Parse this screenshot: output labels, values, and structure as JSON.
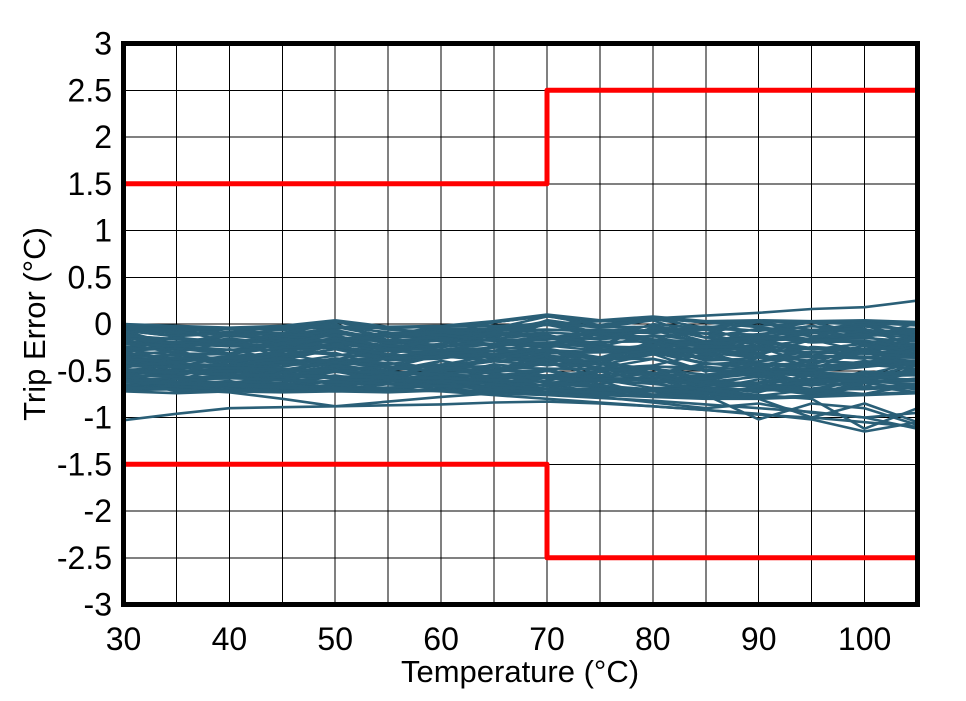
{
  "figure": {
    "colors": {
      "trace": "#2A5F77",
      "limit": "#FF0000",
      "grid": "#000000",
      "axis": "#000000",
      "background": "#FFFFFF"
    }
  },
  "chart_data": {
    "type": "line",
    "title": "",
    "xlabel": "Temperature (°C)",
    "ylabel": "Trip Error (°C)",
    "xlim": [
      30,
      105
    ],
    "ylim": [
      -3,
      3
    ],
    "x_ticks": [
      30,
      40,
      50,
      60,
      70,
      80,
      90,
      100
    ],
    "x_tick_labels": [
      "30",
      "40",
      "50",
      "60",
      "70",
      "80",
      "90",
      "100"
    ],
    "y_ticks": [
      3,
      2.5,
      2,
      1.5,
      1,
      0.5,
      0,
      -0.5,
      -1,
      -1.5,
      -2,
      -2.5,
      -3
    ],
    "y_tick_labels": [
      "3",
      "2.5",
      "2",
      "1.5",
      "1",
      "0.5",
      "0",
      "-0.5",
      "-1",
      "-1.5",
      "-2",
      "-2.5",
      "-3"
    ],
    "grid": {
      "visible": true,
      "x_step": 5,
      "y_step": 0.5
    },
    "legend": "none",
    "limit_lines": {
      "upper": [
        [
          30,
          1.5
        ],
        [
          70,
          1.5
        ],
        [
          70,
          2.5
        ],
        [
          105,
          2.5
        ]
      ],
      "lower": [
        [
          30,
          -1.5
        ],
        [
          70,
          -1.5
        ],
        [
          70,
          -2.5
        ],
        [
          105,
          -2.5
        ]
      ]
    },
    "x": [
      30,
      35,
      40,
      45,
      50,
      55,
      60,
      65,
      70,
      75,
      80,
      85,
      90,
      95,
      100,
      105
    ],
    "band": {
      "description": "dense bundle of device trip-error traces (envelope)",
      "top": [
        0.0,
        -0.02,
        -0.04,
        -0.02,
        0.04,
        -0.03,
        -0.02,
        0.03,
        0.1,
        0.04,
        0.08,
        0.03,
        0.04,
        0.03,
        0.04,
        0.02
      ],
      "bottom": [
        -0.72,
        -0.74,
        -0.72,
        -0.73,
        -0.72,
        -0.73,
        -0.71,
        -0.74,
        -0.75,
        -0.76,
        -0.78,
        -0.8,
        -0.8,
        -0.78,
        -0.76,
        -0.74
      ],
      "n_traces": 80,
      "seed": 7
    },
    "outlier_traces": [
      [
        -1.03,
        -0.96,
        -0.9,
        -0.89,
        -0.88,
        -0.87,
        -0.86,
        -0.84,
        -0.83,
        -0.85,
        -0.88,
        -0.92,
        -0.97,
        -1.0,
        -1.05,
        -1.1
      ],
      [
        -0.68,
        -0.7,
        -0.73,
        -0.8,
        -0.88,
        -0.83,
        -0.78,
        -0.74,
        -0.76,
        -0.79,
        -0.82,
        -0.86,
        -0.9,
        -0.94,
        -1.0,
        -0.95
      ],
      [
        -0.6,
        -0.62,
        -0.64,
        -0.66,
        -0.68,
        -0.7,
        -0.72,
        -0.76,
        -0.8,
        -0.84,
        -0.88,
        -0.92,
        -0.96,
        -1.02,
        -1.15,
        -1.05
      ],
      [
        -0.55,
        -0.56,
        -0.58,
        -0.6,
        -0.62,
        -0.64,
        -0.66,
        -0.68,
        -0.7,
        -0.74,
        -0.78,
        -0.76,
        -1.02,
        -0.85,
        -0.9,
        -1.08
      ],
      [
        -0.05,
        -0.06,
        -0.05,
        -0.04,
        -0.03,
        -0.04,
        -0.03,
        -0.02,
        0.0,
        0.03,
        0.06,
        0.09,
        0.12,
        0.16,
        0.18,
        0.25
      ],
      [
        -0.5,
        -0.52,
        -0.54,
        -0.55,
        -0.56,
        -0.57,
        -0.58,
        -0.6,
        -0.62,
        -0.66,
        -0.7,
        -0.74,
        -0.8,
        -1.0,
        -0.85,
        -1.05
      ],
      [
        -0.45,
        -0.46,
        -0.47,
        -0.48,
        -0.5,
        -0.52,
        -0.54,
        -0.56,
        -0.58,
        -0.6,
        -0.64,
        -0.7,
        -0.76,
        -0.8,
        -1.12,
        -0.9
      ],
      [
        -0.62,
        -0.64,
        -0.66,
        -0.68,
        -0.7,
        -0.68,
        -0.66,
        -0.7,
        -0.74,
        -0.78,
        -0.84,
        -0.9,
        -0.85,
        -0.95,
        -1.0,
        -1.12
      ]
    ]
  }
}
